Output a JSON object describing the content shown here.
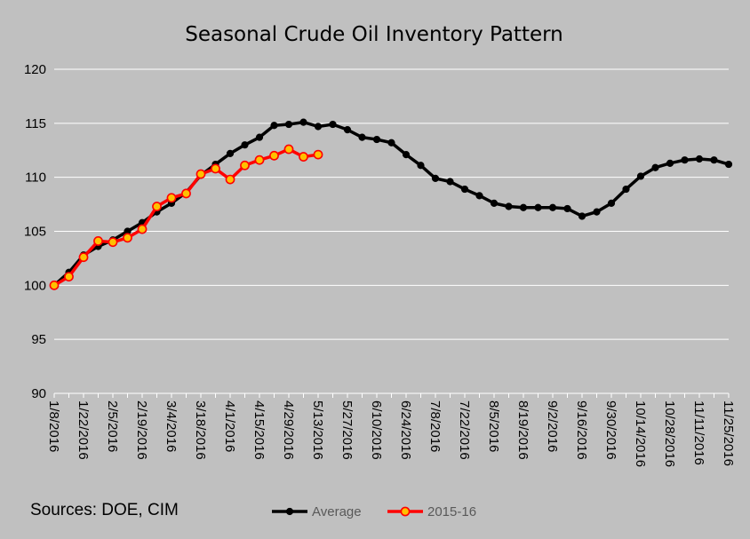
{
  "chart_data": {
    "type": "line",
    "title": "Seasonal Crude Oil Inventory Pattern",
    "xlabel": "",
    "ylabel": "",
    "ylim": [
      90,
      120
    ],
    "yticks": [
      90,
      95,
      100,
      105,
      110,
      115,
      120
    ],
    "x_tick_labels": [
      "1/8/2016",
      "1/22/2016",
      "2/5/2016",
      "2/19/2016",
      "3/4/2016",
      "3/18/2016",
      "4/1/2016",
      "4/15/2016",
      "4/29/2016",
      "5/13/2016",
      "5/27/2016",
      "6/10/2016",
      "6/24/2016",
      "7/8/2016",
      "7/22/2016",
      "8/5/2016",
      "8/19/2016",
      "9/2/2016",
      "9/16/2016",
      "9/30/2016",
      "10/14/2016",
      "10/28/2016",
      "11/11/2016",
      "11/25/2016"
    ],
    "grid": "horizontal",
    "legend_position": "bottom",
    "series": [
      {
        "name": "Average",
        "color": "#000000",
        "values": [
          100.0,
          101.2,
          102.8,
          103.6,
          104.2,
          105.0,
          105.8,
          106.8,
          107.6,
          108.6,
          110.2,
          111.2,
          112.2,
          113.0,
          113.7,
          114.8,
          114.9,
          115.1,
          114.7,
          114.9,
          114.4,
          113.7,
          113.5,
          113.2,
          112.1,
          111.1,
          109.9,
          109.6,
          108.9,
          108.3,
          107.6,
          107.3,
          107.2,
          107.2,
          107.2,
          107.1,
          106.4,
          106.8,
          107.6,
          108.9,
          110.1,
          110.9,
          111.3,
          111.6,
          111.7,
          111.6,
          111.2
        ]
      },
      {
        "name": "2015-16",
        "color": "#ff0000",
        "marker_color": "#ffc000",
        "values": [
          100.0,
          100.8,
          102.6,
          104.1,
          104.0,
          104.4,
          105.2,
          107.3,
          108.1,
          108.5,
          110.3,
          110.8,
          109.8,
          111.1,
          111.6,
          112.0,
          112.6,
          111.9,
          112.1
        ]
      }
    ]
  },
  "footer": {
    "sources": "Sources:  DOE, CIM"
  }
}
